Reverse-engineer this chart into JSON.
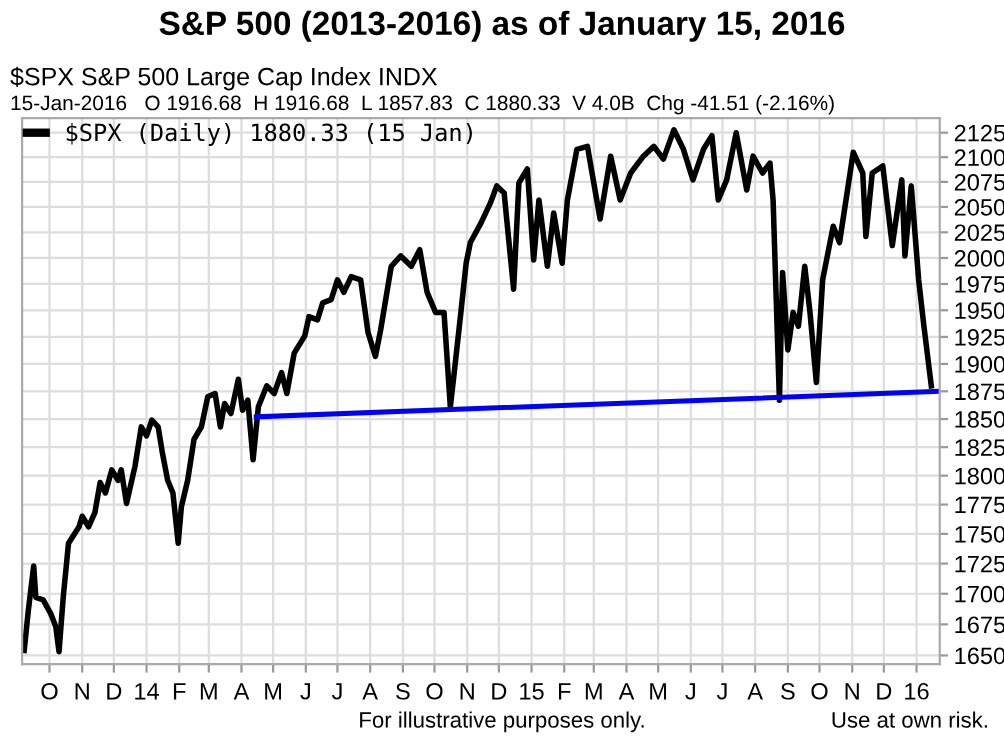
{
  "chart_data": {
    "type": "line",
    "title": "S&P 500 (2013-2016) as of January 15, 2016",
    "subtitle": "$SPX S&P 500 Large Cap Index INDX",
    "annotations": [
      "15-Jan-2016   O 1916.68  H 1916.68  L 1857.83  C 1880.33  V 4.0B  Chg -41.51 (-2.16%)",
      "For illustrative purposes only.",
      "Use at own risk."
    ],
    "series": [
      {
        "name": "$SPX (Daily) 1880.33 (15 Jan)",
        "color": "#000000",
        "x": [
          "2013-09-07",
          "2013-09-11",
          "2013-09-16",
          "2013-09-18",
          "2013-09-25",
          "2013-10-02",
          "2013-10-07",
          "2013-10-10",
          "2013-10-14",
          "2013-10-19",
          "2013-10-29",
          "2013-11-01",
          "2013-11-07",
          "2013-11-13",
          "2013-11-18",
          "2013-11-23",
          "2013-11-29",
          "2013-12-05",
          "2013-12-08",
          "2013-12-13",
          "2013-12-21",
          "2013-12-27",
          "2014-01-01",
          "2014-01-06",
          "2014-01-12",
          "2014-01-16",
          "2014-01-21",
          "2014-01-26",
          "2014-01-31",
          "2014-02-03",
          "2014-02-09",
          "2014-02-15",
          "2014-02-22",
          "2014-02-28",
          "2014-03-07",
          "2014-03-12",
          "2014-03-16",
          "2014-03-22",
          "2014-03-29",
          "2014-04-02",
          "2014-04-07",
          "2014-04-12",
          "2014-04-17",
          "2014-04-25",
          "2014-05-02",
          "2014-05-09",
          "2014-05-14",
          "2014-05-21",
          "2014-05-31",
          "2014-06-04",
          "2014-06-12",
          "2014-06-17",
          "2014-06-25",
          "2014-07-01",
          "2014-07-07",
          "2014-07-14",
          "2014-07-23",
          "2014-07-30",
          "2014-08-06",
          "2014-08-11",
          "2014-08-21",
          "2014-08-30",
          "2014-09-09",
          "2014-09-17",
          "2014-09-24",
          "2014-10-02",
          "2014-10-10",
          "2014-10-16",
          "2014-10-19",
          "2014-10-26",
          "2014-10-31",
          "2014-11-04",
          "2014-11-14",
          "2014-11-23",
          "2014-11-29",
          "2014-12-06",
          "2014-12-15",
          "2014-12-20",
          "2014-12-28",
          "2015-01-03",
          "2015-01-08",
          "2015-01-16",
          "2015-01-22",
          "2015-01-30",
          "2015-02-04",
          "2015-02-13",
          "2015-02-23",
          "2015-03-01",
          "2015-03-07",
          "2015-03-17",
          "2015-03-26",
          "2015-04-05",
          "2015-04-17",
          "2015-04-27",
          "2015-05-06",
          "2015-05-16",
          "2015-05-25",
          "2015-06-03",
          "2015-06-13",
          "2015-06-21",
          "2015-06-27",
          "2015-07-05",
          "2015-07-14",
          "2015-07-24",
          "2015-07-30",
          "2015-08-08",
          "2015-08-15",
          "2015-08-18",
          "2015-08-24",
          "2015-08-27",
          "2015-09-01",
          "2015-09-06",
          "2015-09-11",
          "2015-09-17",
          "2015-09-22",
          "2015-09-28",
          "2015-10-04",
          "2015-10-14",
          "2015-10-20",
          "2015-11-02",
          "2015-11-11",
          "2015-11-14",
          "2015-11-20",
          "2015-11-30",
          "2015-12-09",
          "2015-12-18",
          "2015-12-21",
          "2015-12-27",
          "2016-01-03",
          "2016-01-08",
          "2016-01-15"
        ],
        "values": [
          1654,
          1687,
          1723,
          1697,
          1695,
          1684,
          1673,
          1653,
          1697,
          1742,
          1756,
          1765,
          1756,
          1768,
          1794,
          1785,
          1805,
          1796,
          1805,
          1776,
          1808,
          1843,
          1835,
          1849,
          1843,
          1820,
          1796,
          1785,
          1742,
          1773,
          1796,
          1832,
          1843,
          1870,
          1873,
          1843,
          1864,
          1855,
          1886,
          1858,
          1867,
          1814,
          1861,
          1880,
          1873,
          1892,
          1873,
          1910,
          1926,
          1944,
          1941,
          1957,
          1960,
          1979,
          1967,
          1982,
          1979,
          1929,
          1907,
          1932,
          1992,
          2002,
          1992,
          2008,
          1967,
          1948,
          1948,
          1861,
          1886,
          1948,
          1995,
          2015,
          2034,
          2054,
          2071,
          2064,
          1970,
          2074,
          2088,
          1998,
          2057,
          1992,
          2044,
          1995,
          2057,
          2108,
          2111,
          2074,
          2038,
          2101,
          2057,
          2084,
          2101,
          2111,
          2098,
          2128,
          2108,
          2077,
          2108,
          2122,
          2057,
          2077,
          2125,
          2067,
          2101,
          2084,
          2094,
          2057,
          1867,
          1986,
          1913,
          1948,
          1935,
          1992,
          1948,
          1883,
          1979,
          2031,
          2015,
          2105,
          2084,
          2021,
          2084,
          2091,
          2012,
          2077,
          2002,
          2071,
          1979,
          1935,
          1880
        ]
      },
      {
        "type": "line",
        "color": "#0000ff",
        "x": [
          "2014-04-15",
          "2016-01-23"
        ],
        "values": [
          1852,
          1875
        ]
      }
    ],
    "log": "y",
    "xlim": [
      "2013-09-05",
      "2016-01-23"
    ],
    "ylim": [
      1643,
      2140
    ],
    "yticks": [
      1650,
      1675,
      1700,
      1725,
      1750,
      1775,
      1800,
      1825,
      1850,
      1875,
      1900,
      1925,
      1950,
      1975,
      2000,
      2025,
      2050,
      2075,
      2100,
      2125
    ],
    "xticks": [
      {
        "value": "2013-10-01",
        "label": "O"
      },
      {
        "value": "2013-11-01",
        "label": "N"
      },
      {
        "value": "2013-12-01",
        "label": "D"
      },
      {
        "value": "2014-01-01",
        "label": "14"
      },
      {
        "value": "2014-02-01",
        "label": "F"
      },
      {
        "value": "2014-03-01",
        "label": "M"
      },
      {
        "value": "2014-04-01",
        "label": "A"
      },
      {
        "value": "2014-05-01",
        "label": "M"
      },
      {
        "value": "2014-06-01",
        "label": "J"
      },
      {
        "value": "2014-07-01",
        "label": "J"
      },
      {
        "value": "2014-08-01",
        "label": "A"
      },
      {
        "value": "2014-09-01",
        "label": "S"
      },
      {
        "value": "2014-10-01",
        "label": "O"
      },
      {
        "value": "2014-11-01",
        "label": "N"
      },
      {
        "value": "2014-12-01",
        "label": "D"
      },
      {
        "value": "2015-01-01",
        "label": "15"
      },
      {
        "value": "2015-02-01",
        "label": "F"
      },
      {
        "value": "2015-03-01",
        "label": "M"
      },
      {
        "value": "2015-04-01",
        "label": "A"
      },
      {
        "value": "2015-05-01",
        "label": "M"
      },
      {
        "value": "2015-06-01",
        "label": "J"
      },
      {
        "value": "2015-07-01",
        "label": "J"
      },
      {
        "value": "2015-08-01",
        "label": "A"
      },
      {
        "value": "2015-09-01",
        "label": "S"
      },
      {
        "value": "2015-10-01",
        "label": "O"
      },
      {
        "value": "2015-11-01",
        "label": "N"
      },
      {
        "value": "2015-12-01",
        "label": "D"
      },
      {
        "value": "2016-01-01",
        "label": "16"
      }
    ],
    "grid": true,
    "legend": "top left",
    "line_style": "solid",
    "marker": "none"
  }
}
